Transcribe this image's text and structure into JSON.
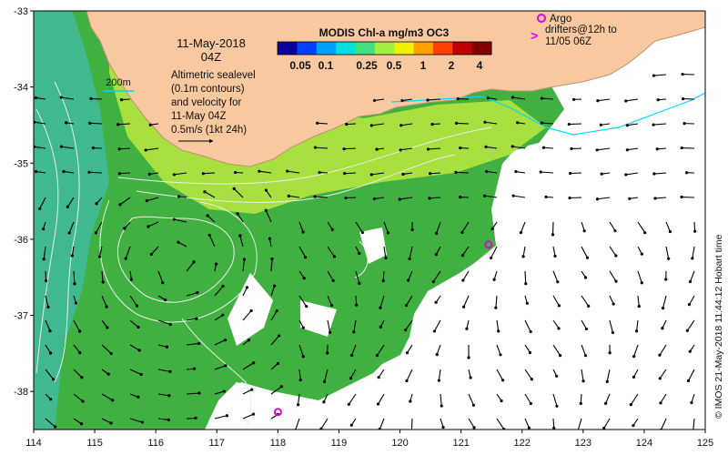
{
  "header": {
    "date_line": "11-May-2018",
    "time_line": "04Z"
  },
  "colorbar": {
    "title": "MODIS Chl-a mg/m3 OC3",
    "ticks": [
      "0.05",
      "0.1",
      "0.25",
      "0.5",
      "1",
      "2",
      "4"
    ],
    "colors": [
      "#0a00a0",
      "#0040ff",
      "#00a0ff",
      "#00e0e0",
      "#40e080",
      "#a0f040",
      "#f0f000",
      "#ffa000",
      "#ff4000",
      "#c00000",
      "#800000"
    ]
  },
  "legend_200m": {
    "label": "200m",
    "color": "#00d8ff"
  },
  "altimetry_note": {
    "lines": [
      "Altimetric sealevel",
      "(0.1m contours)",
      "and velocity for",
      "11-May 04Z",
      "0.5m/s (1kt 24h)"
    ]
  },
  "argo_note": {
    "lines": [
      "Argo",
      "drifters@12h to",
      "11/05 06Z"
    ],
    "marker_color": "#e000e0"
  },
  "credit": "© IMOS 21-May-2018 11:44:12 Hobart time",
  "axes": {
    "x_ticks": [
      "114",
      "115",
      "116",
      "117",
      "118",
      "119",
      "120",
      "121",
      "122",
      "123",
      "124",
      "125"
    ],
    "y_ticks": [
      "-33",
      "-34",
      "-35",
      "-36",
      "-37",
      "-38"
    ]
  },
  "colors": {
    "land": "#f8c8a0",
    "coast": "#c09070",
    "deep_green": "#40b040",
    "mid_green": "#5cc050",
    "teal": "#40b890",
    "yellow_green": "#a8e040",
    "cloud": "#ffffff"
  },
  "argo_floats": [
    {
      "lon": 118.0,
      "lat": -38.27
    },
    {
      "lon": 121.45,
      "lat": -36.07
    }
  ]
}
